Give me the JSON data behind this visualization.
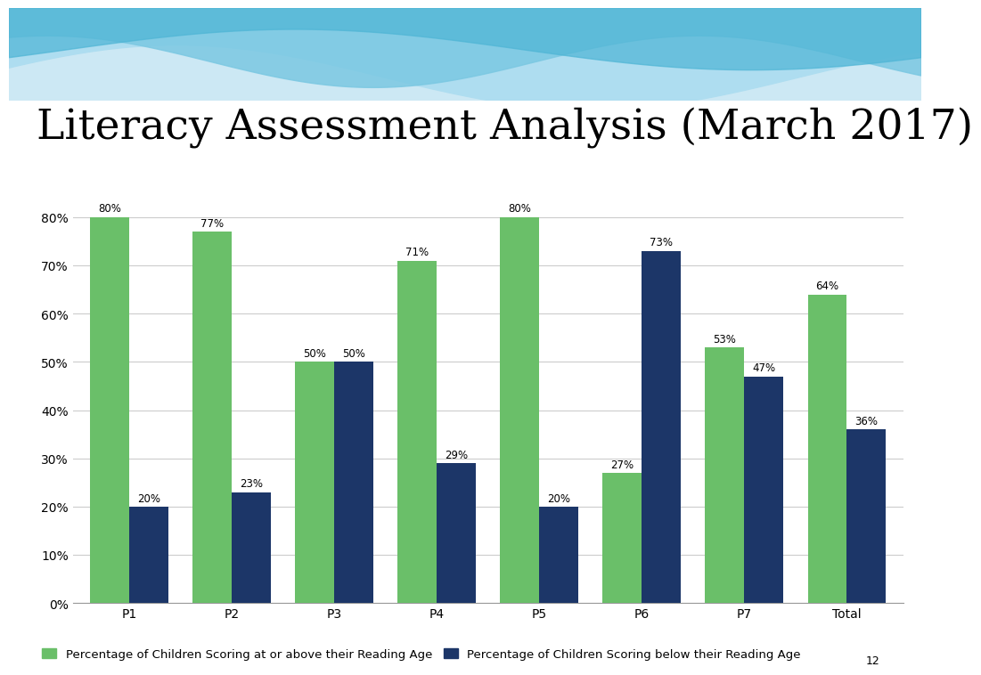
{
  "title": "Literacy Assessment Analysis (March 2017)",
  "categories": [
    "P1",
    "P2",
    "P3",
    "P4",
    "P5",
    "P6",
    "P7",
    "Total"
  ],
  "green_values": [
    80,
    77,
    50,
    71,
    80,
    27,
    53,
    64
  ],
  "blue_values": [
    20,
    23,
    50,
    29,
    20,
    73,
    47,
    36
  ],
  "green_color": "#6abf69",
  "blue_color": "#1c3668",
  "green_label": "Percentage of Children Scoring at or above their Reading Age",
  "blue_label": "Percentage of Children Scoring below their Reading Age",
  "ylim": [
    0,
    90
  ],
  "yticks": [
    0,
    10,
    20,
    30,
    40,
    50,
    60,
    70,
    80
  ],
  "ytick_labels": [
    "0%",
    "10%",
    "20%",
    "30%",
    "40%",
    "50%",
    "60%",
    "70%",
    "80%"
  ],
  "background_color": "#ffffff",
  "title_fontsize": 34,
  "bar_label_fontsize": 8.5,
  "axis_label_fontsize": 10,
  "legend_fontsize": 9.5,
  "slide_number": "12"
}
